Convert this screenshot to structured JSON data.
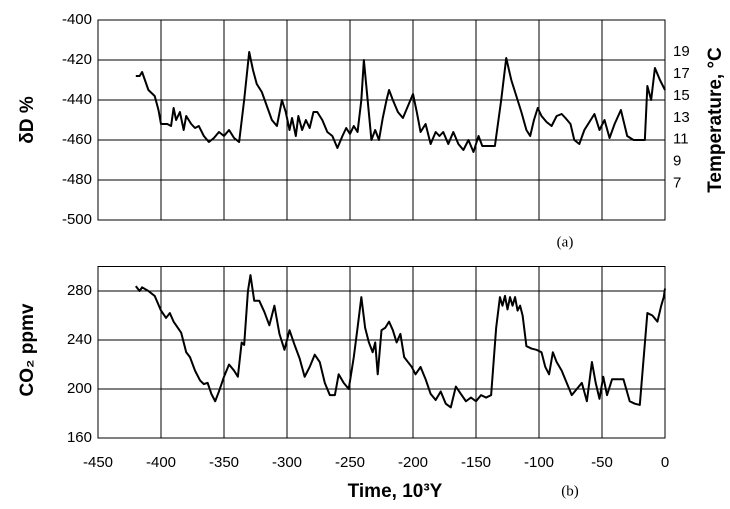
{
  "chart_data": [
    {
      "type": "line",
      "ylabel": "δD %",
      "y2label": "Temperature, °C",
      "annotation": "(a)",
      "color": "#000000",
      "grid": true,
      "xlim": [
        -450,
        0
      ],
      "xticks": [
        -450,
        -400,
        -350,
        -300,
        -250,
        -200,
        -150,
        -100,
        -50,
        0
      ],
      "ylim": [
        -500,
        -400
      ],
      "yticks": [
        -500,
        -480,
        -460,
        -440,
        -420,
        -400
      ],
      "y2lim": [
        3.7,
        21.9
      ],
      "y2ticks": [
        7,
        9,
        11,
        13,
        15,
        17,
        19
      ],
      "x": [
        -420,
        -417,
        -415,
        -410,
        -405,
        -402,
        -400,
        -395,
        -392,
        -390,
        -388,
        -385,
        -382,
        -380,
        -376,
        -373,
        -370,
        -366,
        -362,
        -358,
        -354,
        -350,
        -346,
        -342,
        -338,
        -334,
        -330,
        -327,
        -324,
        -320,
        -316,
        -312,
        -308,
        -304,
        -301,
        -298,
        -296,
        -293,
        -291,
        -288,
        -285,
        -282,
        -279,
        -276,
        -272,
        -268,
        -264,
        -260,
        -256,
        -253,
        -250,
        -247,
        -244,
        -241,
        -239,
        -236,
        -233,
        -230,
        -227,
        -224,
        -221,
        -219,
        -216,
        -212,
        -208,
        -204,
        -200,
        -197,
        -194,
        -190,
        -186,
        -182,
        -179,
        -176,
        -172,
        -168,
        -164,
        -160,
        -156,
        -152,
        -148,
        -145,
        -140,
        -135,
        -130,
        -126,
        -122,
        -118,
        -114,
        -110,
        -107,
        -104,
        -101,
        -98,
        -94,
        -90,
        -86,
        -82,
        -79,
        -75,
        -72,
        -68,
        -64,
        -60,
        -56,
        -52,
        -48,
        -44,
        -40,
        -35,
        -30,
        -25,
        -20,
        -16,
        -14,
        -11,
        -8,
        -4,
        0
      ],
      "values": [
        -428,
        -428,
        -426,
        -435,
        -438,
        -445,
        -452,
        -452,
        -453,
        -444,
        -450,
        -446,
        -455,
        -448,
        -452,
        -454,
        -453,
        -458,
        -461,
        -459,
        -456,
        -458,
        -455,
        -459,
        -461,
        -440,
        -416,
        -425,
        -432,
        -436,
        -443,
        -450,
        -453,
        -440,
        -446,
        -455,
        -449,
        -458,
        -448,
        -455,
        -450,
        -454,
        -446,
        -446,
        -450,
        -456,
        -458,
        -464,
        -458,
        -454,
        -457,
        -453,
        -456,
        -440,
        -420,
        -440,
        -460,
        -455,
        -460,
        -449,
        -440,
        -435,
        -440,
        -446,
        -449,
        -443,
        -437,
        -446,
        -456,
        -452,
        -462,
        -456,
        -458,
        -456,
        -462,
        -456,
        -462,
        -465,
        -460,
        -466,
        -458,
        -463,
        -463,
        -463,
        -440,
        -419,
        -430,
        -438,
        -446,
        -455,
        -458,
        -450,
        -444,
        -448,
        -451,
        -453,
        -448,
        -447,
        -449,
        -452,
        -460,
        -462,
        -455,
        -451,
        -447,
        -455,
        -450,
        -459,
        -452,
        -445,
        -458,
        -460,
        -460,
        -460,
        -433,
        -440,
        -424,
        -430,
        -435
      ]
    },
    {
      "type": "line",
      "ylabel": "CO₂ ppmv",
      "xlabel": "Time, 10³Y",
      "annotation": "(b)",
      "color": "#000000",
      "grid": true,
      "xlim": [
        -450,
        0
      ],
      "xticks": [
        -450,
        -400,
        -350,
        -300,
        -250,
        -200,
        -150,
        -100,
        -50,
        0
      ],
      "ylim": [
        160,
        300
      ],
      "yticks": [
        160,
        200,
        240,
        280
      ],
      "x": [
        -420,
        -417,
        -415,
        -410,
        -405,
        -400,
        -396,
        -393,
        -390,
        -388,
        -384,
        -380,
        -377,
        -373,
        -369,
        -366,
        -363,
        -360,
        -357,
        -354,
        -350,
        -346,
        -342,
        -339,
        -336,
        -334,
        -331,
        -329,
        -326,
        -322,
        -318,
        -314,
        -310,
        -306,
        -302,
        -298,
        -294,
        -290,
        -286,
        -282,
        -278,
        -274,
        -270,
        -266,
        -262,
        -259,
        -255,
        -251,
        -247,
        -244,
        -241,
        -238,
        -235,
        -232,
        -230,
        -228,
        -225,
        -222,
        -219,
        -216,
        -213,
        -210,
        -207,
        -204,
        -201,
        -198,
        -194,
        -190,
        -186,
        -182,
        -178,
        -174,
        -170,
        -166,
        -162,
        -158,
        -154,
        -150,
        -146,
        -142,
        -138,
        -134,
        -131,
        -129,
        -127,
        -125,
        -123,
        -121,
        -119,
        -117,
        -115,
        -113,
        -110,
        -106,
        -102,
        -98,
        -95,
        -92,
        -89,
        -86,
        -82,
        -78,
        -74,
        -70,
        -66,
        -62,
        -58,
        -55,
        -52,
        -49,
        -46,
        -42,
        -37,
        -33,
        -28,
        -24,
        -20,
        -14,
        -10,
        -6,
        -3,
        -1,
        0
      ],
      "values": [
        284,
        280,
        283,
        280,
        276,
        264,
        258,
        262,
        255,
        252,
        246,
        230,
        226,
        215,
        207,
        204,
        205,
        196,
        190,
        198,
        210,
        220,
        215,
        210,
        238,
        236,
        280,
        293,
        272,
        272,
        263,
        252,
        268,
        245,
        232,
        248,
        236,
        225,
        210,
        218,
        228,
        222,
        205,
        195,
        195,
        212,
        205,
        200,
        226,
        250,
        275,
        250,
        238,
        230,
        238,
        212,
        248,
        250,
        255,
        248,
        238,
        245,
        226,
        222,
        218,
        212,
        218,
        208,
        196,
        191,
        198,
        188,
        185,
        202,
        196,
        190,
        193,
        190,
        195,
        193,
        195,
        250,
        275,
        268,
        276,
        265,
        275,
        268,
        275,
        264,
        268,
        260,
        235,
        233,
        232,
        230,
        218,
        212,
        230,
        222,
        215,
        205,
        195,
        200,
        205,
        190,
        222,
        205,
        192,
        210,
        195,
        208,
        208,
        208,
        190,
        188,
        187,
        262,
        260,
        255,
        268,
        275,
        282
      ]
    }
  ]
}
